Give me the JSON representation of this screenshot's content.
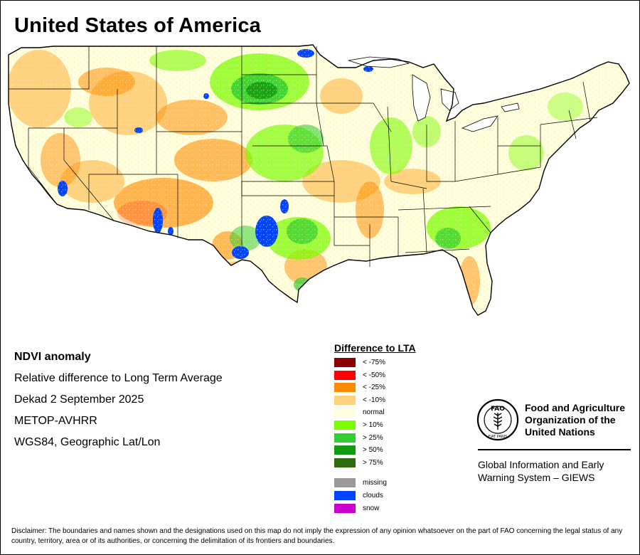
{
  "title": "United States of America",
  "info": {
    "product": "NDVI anomaly",
    "description": "Relative difference to Long Term Average",
    "period": "Dekad 2 September 2025",
    "sensor": "METOP-AVHRR",
    "projection": "WGS84, Geographic Lat/Lon"
  },
  "legend": {
    "title": "Difference to LTA",
    "classes": [
      {
        "label": "< -75%",
        "color": "#8b0000"
      },
      {
        "label": "< -50%",
        "color": "#ff0000"
      },
      {
        "label": "< -25%",
        "color": "#ff8c00"
      },
      {
        "label": "< -10%",
        "color": "#ffd27f"
      },
      {
        "label": "normal",
        "color": "#ffffdd"
      },
      {
        "label": "> 10%",
        "color": "#7cfc00"
      },
      {
        "label": "> 25%",
        "color": "#32cd32"
      },
      {
        "label": "> 50%",
        "color": "#129b12"
      },
      {
        "label": "> 75%",
        "color": "#2e6b10"
      }
    ],
    "extras": [
      {
        "label": "missing",
        "color": "#999999"
      },
      {
        "label": "clouds",
        "color": "#0044ff"
      },
      {
        "label": "snow",
        "color": "#cc00cc"
      }
    ]
  },
  "fao": {
    "emblem_text": "FAO",
    "emblem_motto": "FIAT PANIS",
    "name_line1": "Food and Agriculture",
    "name_line2": "Organization of the",
    "name_line3": "United Nations",
    "giews_line1": "Global Information and Early",
    "giews_line2": "Warning System – GIEWS"
  },
  "disclaimer": "Disclaimer: The boundaries and names shown and the designations used on this map do not imply the expression of any opinion whatsoever on the part of FAO concerning the legal status of any country, territory, area or of its authorities, or concerning the delimitation of its frontiers and boundaries."
}
